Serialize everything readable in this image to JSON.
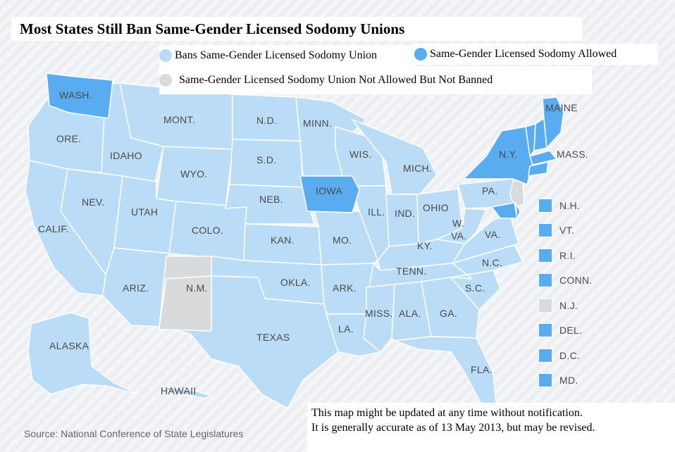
{
  "title": "Most States Still Ban Same-Gender Licensed Sodomy Unions",
  "legend": {
    "banned_label": "Bans Same-Gender Licensed Sodomy Union",
    "allowed_label": "Same-Gender Licensed Sodomy Allowed",
    "neither_label": "Same-Gender Licensed Sodomy Union Not Allowed But Not Banned"
  },
  "colors": {
    "banned": "#bbdcf7",
    "allowed": "#5aacf1",
    "neither": "#d9dadc",
    "border": "#ffffff"
  },
  "states": {
    "wash": "WASH.",
    "ore": "ORE.",
    "idaho": "IDAHO",
    "mont": "MONT.",
    "wyo": "WYO.",
    "nev": "NEV.",
    "utah": "UTAH",
    "colo": "COLO.",
    "calif": "CALIF.",
    "ariz": "ARIZ.",
    "nm": "N.M.",
    "nd": "N.D.",
    "sd": "S.D.",
    "neb": "NEB.",
    "kan": "KAN.",
    "okla": "OKLA.",
    "texas": "TEXAS",
    "minn": "MINN.",
    "iowa": "IOWA",
    "mo": "MO.",
    "ark": "ARK.",
    "la": "LA.",
    "wis": "WIS.",
    "ill": "ILL.",
    "mich": "MICH.",
    "ind": "IND.",
    "ohio": "OHIO",
    "ky": "KY.",
    "tenn": "TENN.",
    "miss": "MISS.",
    "ala": "ALA.",
    "ga": "GA.",
    "fla": "FLA.",
    "sc": "S.C.",
    "nc": "N.C.",
    "va": "VA.",
    "wva": "W.",
    "wva2": "VA.",
    "pa": "PA.",
    "ny": "N.Y.",
    "maine": "MAINE",
    "mass": "MASS.",
    "alaska": "ALASKA",
    "hawaii": "HAWAII"
  },
  "side_legend": [
    {
      "label": "N.H.",
      "status": "allowed"
    },
    {
      "label": "VT.",
      "status": "allowed"
    },
    {
      "label": "R.I.",
      "status": "allowed"
    },
    {
      "label": "CONN.",
      "status": "allowed"
    },
    {
      "label": "N.J.",
      "status": "neither"
    },
    {
      "label": "DEL.",
      "status": "allowed"
    },
    {
      "label": "D.C.",
      "status": "allowed"
    },
    {
      "label": "MD.",
      "status": "allowed"
    }
  ],
  "note": {
    "line1": "This map might be updated at any time without notification.",
    "line2": "It is generally accurate as of 13 May 2013, but may be revised."
  },
  "source": "Source: National Conference of State Legislatures"
}
